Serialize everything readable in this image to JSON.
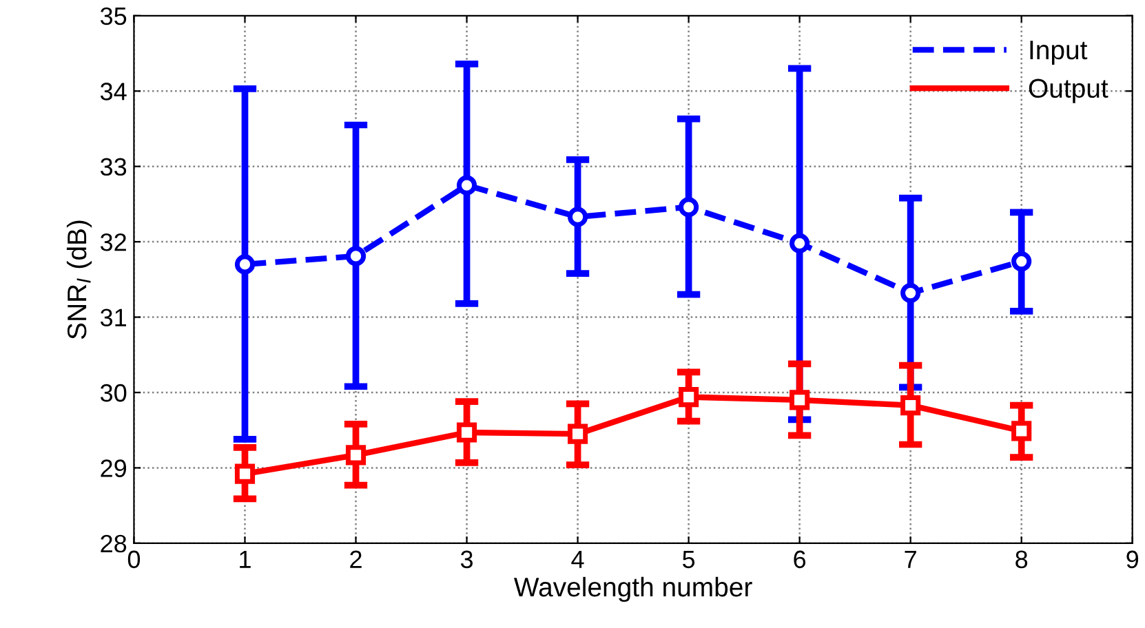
{
  "chart_data": {
    "type": "line",
    "xlabel": "Wavelength number",
    "ylabel": "SNR$_{I}$ (dB)",
    "x": [
      1,
      2,
      3,
      4,
      5,
      6,
      7,
      8
    ],
    "xlim": [
      0,
      9
    ],
    "xticks": [
      0,
      1,
      2,
      3,
      4,
      5,
      6,
      7,
      8,
      9
    ],
    "ylim": [
      28,
      35
    ],
    "yticks": [
      28,
      29,
      30,
      31,
      32,
      33,
      34,
      35
    ],
    "grid": true,
    "legend": "top right",
    "series": [
      {
        "name": "Input",
        "color": "#0000ff",
        "marker": "circle",
        "line_style": "dashed",
        "values": [
          31.7,
          31.81,
          32.75,
          32.33,
          32.46,
          31.98,
          31.32,
          31.74
        ],
        "errors": [
          [
            29.38,
            34.03
          ],
          [
            30.08,
            33.55
          ],
          [
            31.18,
            34.36
          ],
          [
            31.58,
            33.09
          ],
          [
            31.3,
            33.63
          ],
          [
            29.64,
            34.3
          ],
          [
            30.07,
            32.58
          ],
          [
            31.08,
            32.39
          ]
        ]
      },
      {
        "name": "Output",
        "color": "#ff0000",
        "marker": "square",
        "line_style": "solid",
        "values": [
          28.92,
          29.17,
          29.47,
          29.45,
          29.94,
          29.9,
          29.83,
          29.49
        ],
        "errors": [
          [
            28.59,
            29.27
          ],
          [
            28.77,
            29.58
          ],
          [
            29.07,
            29.88
          ],
          [
            29.04,
            29.85
          ],
          [
            29.62,
            30.27
          ],
          [
            29.43,
            30.38
          ],
          [
            29.31,
            30.36
          ],
          [
            29.14,
            29.83
          ]
        ]
      }
    ]
  }
}
